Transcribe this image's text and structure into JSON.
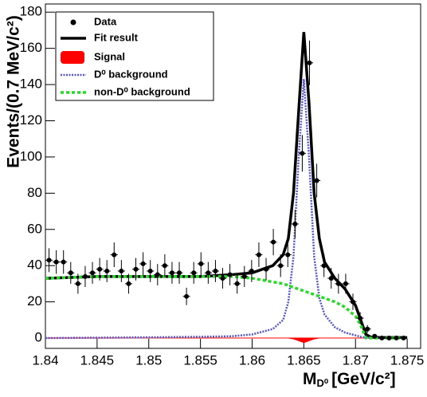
{
  "chart_data": {
    "type": "errorbar",
    "y_label": "Events/(0.7 MeV/c²)",
    "x_label": {
      "main": "M",
      "sub": "D⁰",
      "unit": "[GeV/c²]"
    },
    "xlim": [
      1.84,
      1.8763
    ],
    "ylim": [
      -5.7,
      184.5
    ],
    "xticks": [
      1.84,
      1.845,
      1.85,
      1.855,
      1.86,
      1.865,
      1.87,
      1.875
    ],
    "yticks": [
      0,
      20,
      40,
      60,
      80,
      100,
      120,
      140,
      160,
      180
    ],
    "bin_width": 0.0007,
    "data": {
      "name": "Data",
      "color": "#000000",
      "x_start": 1.84,
      "values": [
        43,
        42,
        42,
        36,
        30,
        34,
        36,
        38,
        37,
        46,
        37,
        30,
        38,
        41,
        37,
        35,
        40,
        36,
        36,
        23,
        36,
        41,
        36,
        37,
        33,
        35,
        30,
        34,
        37,
        46,
        38,
        53,
        40,
        46,
        63,
        102,
        152,
        87,
        40,
        33,
        30,
        30,
        20,
        11,
        5,
        1,
        0,
        0,
        0,
        0
      ],
      "errors": [
        6.6,
        6.5,
        6.5,
        6,
        5.5,
        5.8,
        6,
        6.2,
        6.1,
        6.8,
        6.1,
        5.5,
        6.2,
        6.4,
        6.1,
        5.9,
        6.3,
        6,
        6,
        4.8,
        6,
        6.4,
        6,
        6.1,
        5.7,
        5.9,
        5.5,
        5.8,
        6.1,
        6.8,
        6.2,
        7.3,
        6.3,
        6.8,
        7.9,
        10.1,
        12.3,
        9.3,
        6.3,
        5.7,
        5.5,
        5.5,
        4.5,
        3.3,
        2.2,
        1,
        0,
        0,
        0,
        0
      ]
    },
    "curve_x": [
      1.84,
      1.845,
      1.85,
      1.855,
      1.858,
      1.86,
      1.862,
      1.863,
      1.8635,
      1.864,
      1.8645,
      1.865,
      1.8655,
      1.866,
      1.8665,
      1.867,
      1.868,
      1.869,
      1.87,
      1.8705,
      1.871,
      1.8715,
      1.872,
      1.875
    ],
    "curves": [
      {
        "name": "Fit result",
        "color": "#000000",
        "style": "fit",
        "values": [
          33,
          34,
          34,
          34,
          35,
          36,
          40,
          46,
          55,
          80,
          125,
          169,
          130,
          80,
          55,
          42,
          33,
          27,
          18,
          10,
          2,
          0.5,
          0.3,
          0.3
        ]
      },
      {
        "name": "Signal",
        "color": "#ff0000",
        "style": "area",
        "values": [
          0,
          0,
          0,
          0,
          0,
          0,
          0,
          0,
          0,
          -0.5,
          -1.5,
          -2.5,
          -1.5,
          -0.5,
          0,
          0,
          0,
          0,
          0,
          0,
          0,
          0,
          0,
          0
        ]
      },
      {
        "name": "D⁰ background",
        "color": "#5555cc",
        "style": "dotted",
        "values": [
          0,
          0.2,
          0.4,
          0.7,
          1,
          2,
          5,
          10,
          20,
          45,
          100,
          143,
          100,
          45,
          22,
          13,
          6,
          3,
          1.5,
          0.7,
          0.2,
          0,
          0,
          0
        ]
      },
      {
        "name": "non-D⁰ background",
        "color": "#22dd22",
        "style": "dashed",
        "values": [
          33,
          34,
          34,
          34,
          34,
          33,
          31,
          30,
          29,
          28,
          27,
          26,
          25,
          24,
          23,
          22,
          20,
          17,
          12,
          7,
          0,
          0,
          0,
          0
        ]
      }
    ]
  }
}
